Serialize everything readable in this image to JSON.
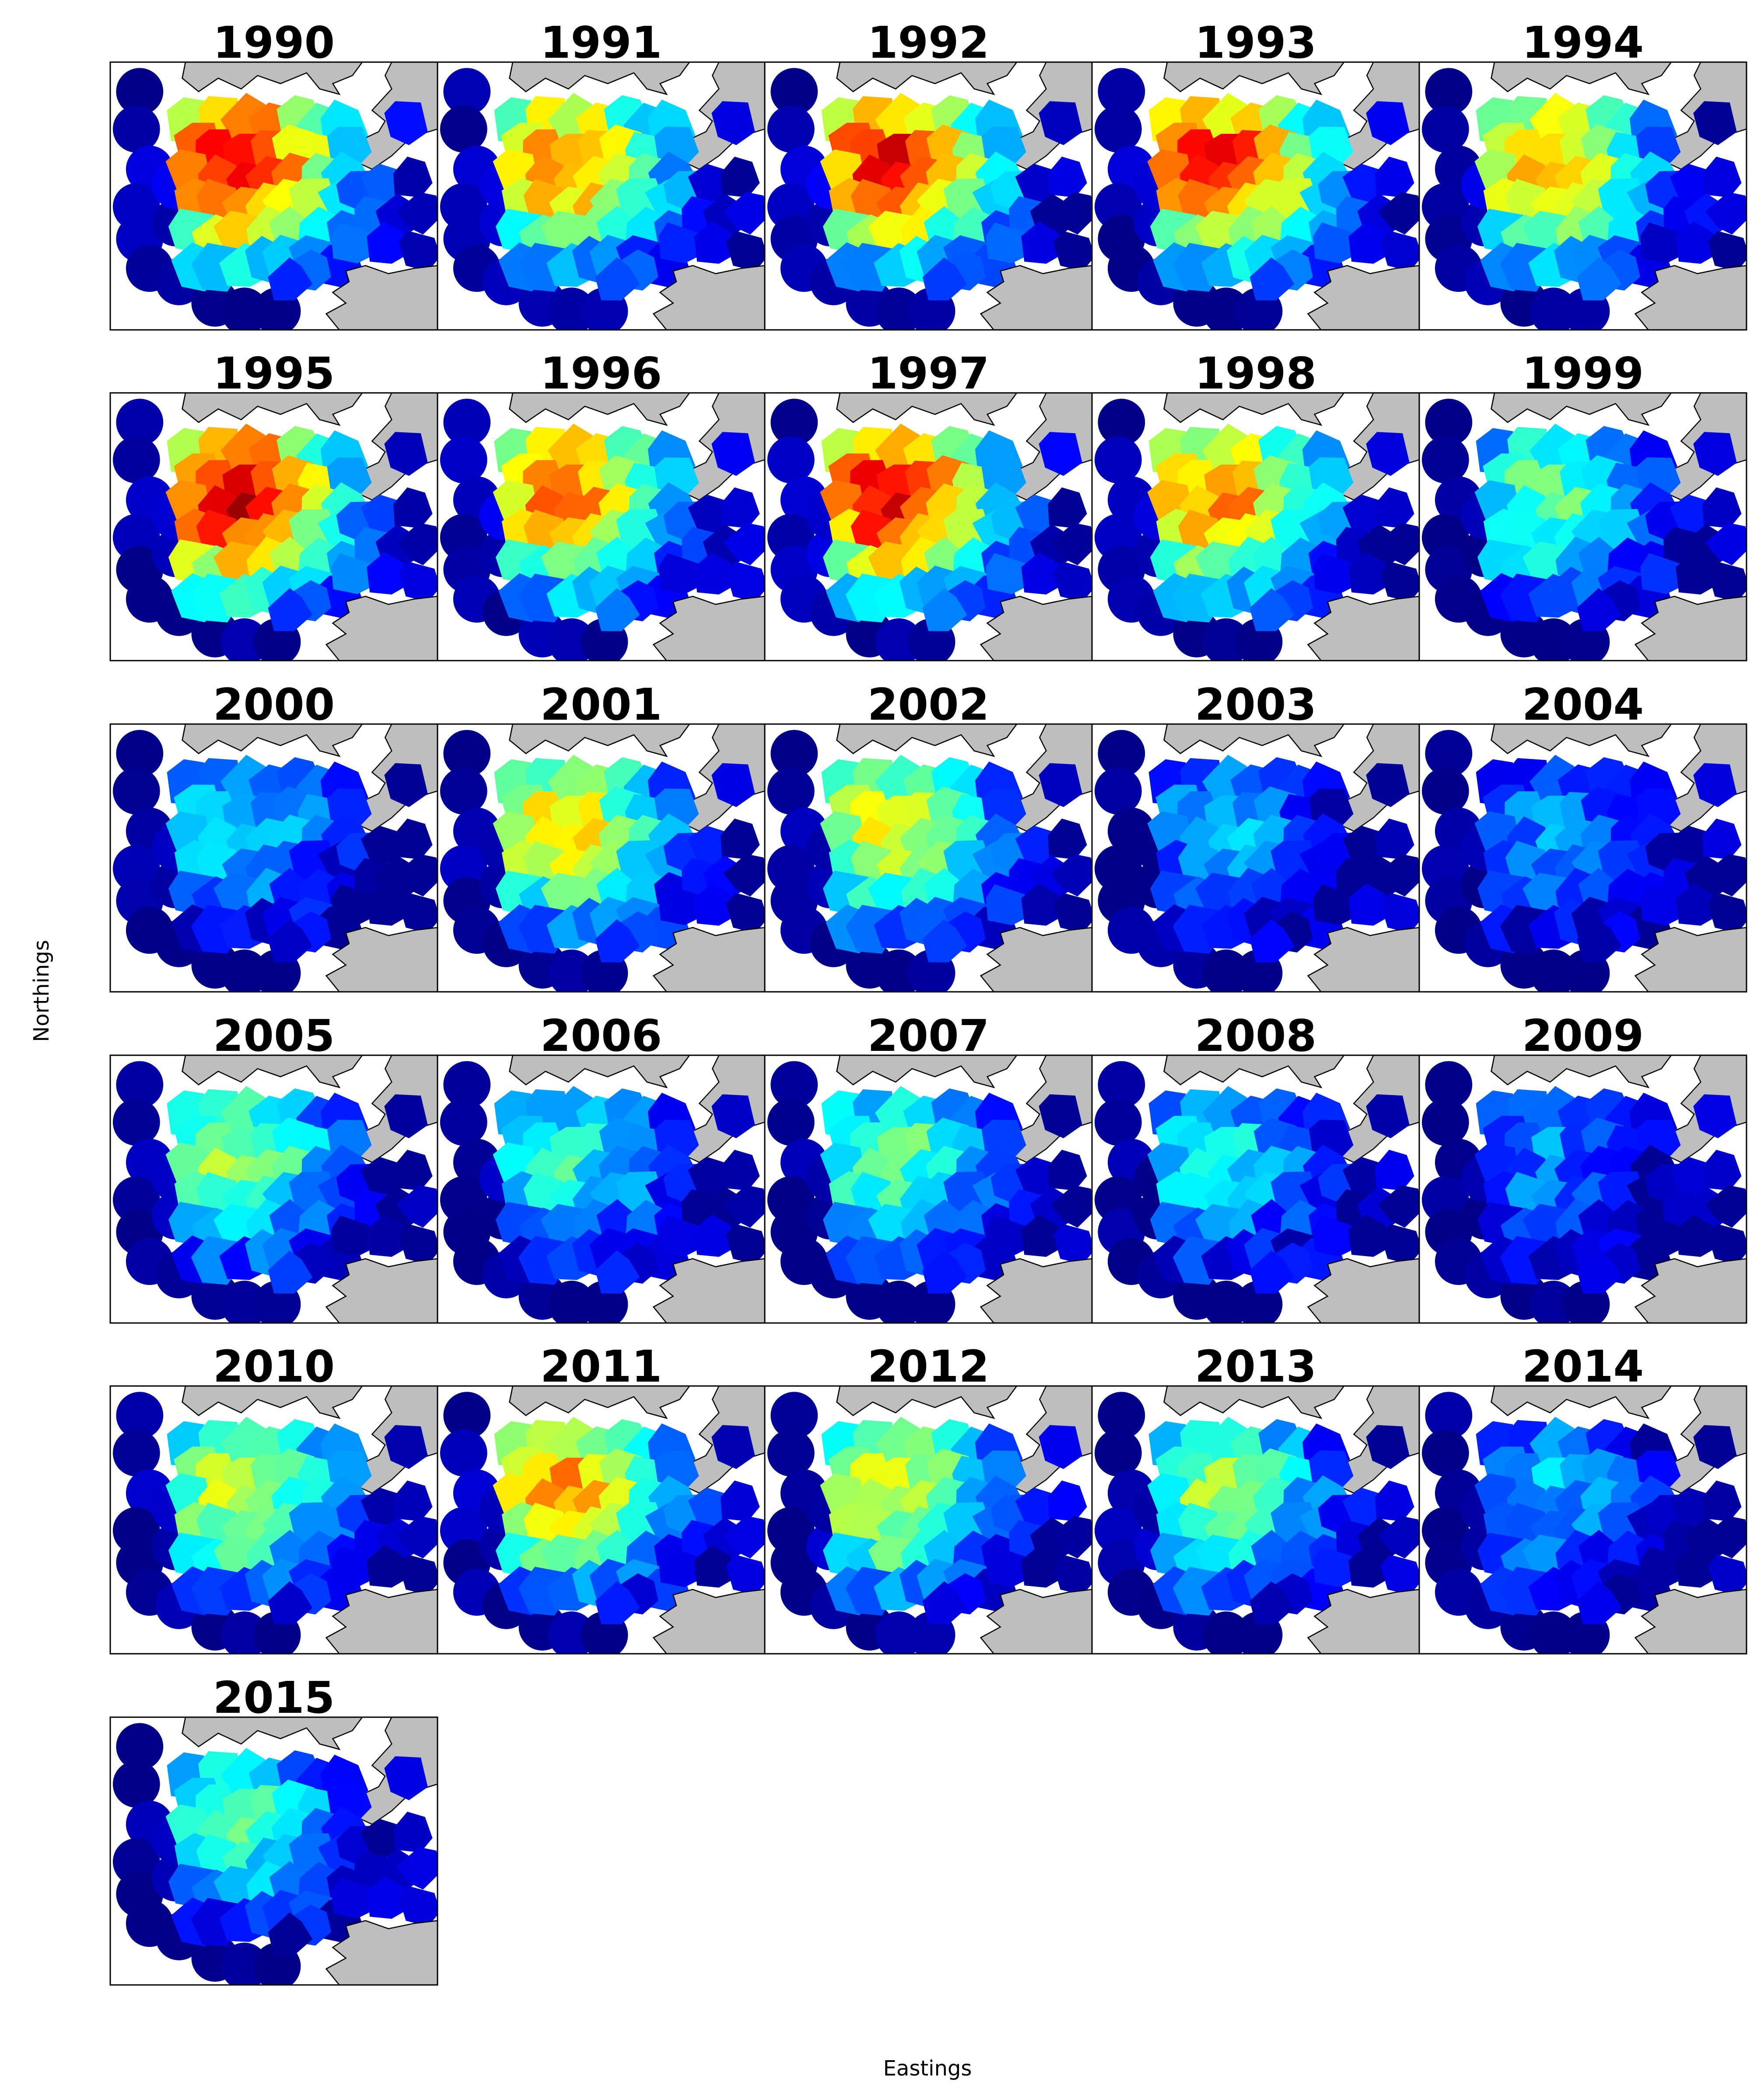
{
  "figure": {
    "xlabel": "Eastings",
    "ylabel": "Northings",
    "colors": {
      "land": "#bebebe",
      "coast": "#000000",
      "sea_background": "#ffffff",
      "frame": "#000000"
    }
  },
  "chart_data": {
    "type": "heatmap",
    "description_of_encoding": "jet colormap; per-panel overall intensity level (0 = dark blue, 1 = red)",
    "colormap": "jet",
    "grid": false,
    "legend": "none",
    "panels": [
      {
        "title": "1990",
        "level": 0.92
      },
      {
        "title": "1991",
        "level": 0.78
      },
      {
        "title": "1992",
        "level": 0.9
      },
      {
        "title": "1993",
        "level": 0.88
      },
      {
        "title": "1994",
        "level": 0.72
      },
      {
        "title": "1995",
        "level": 0.95
      },
      {
        "title": "1996",
        "level": 0.8
      },
      {
        "title": "1997",
        "level": 0.92
      },
      {
        "title": "1998",
        "level": 0.78
      },
      {
        "title": "1999",
        "level": 0.48
      },
      {
        "title": "2000",
        "level": 0.35
      },
      {
        "title": "2001",
        "level": 0.66
      },
      {
        "title": "2002",
        "level": 0.62
      },
      {
        "title": "2003",
        "level": 0.3
      },
      {
        "title": "2004",
        "level": 0.26
      },
      {
        "title": "2005",
        "level": 0.52
      },
      {
        "title": "2006",
        "level": 0.42
      },
      {
        "title": "2007",
        "level": 0.48
      },
      {
        "title": "2008",
        "level": 0.38
      },
      {
        "title": "2009",
        "level": 0.25
      },
      {
        "title": "2010",
        "level": 0.58
      },
      {
        "title": "2011",
        "level": 0.72
      },
      {
        "title": "2012",
        "level": 0.62
      },
      {
        "title": "2013",
        "level": 0.55
      },
      {
        "title": "2014",
        "level": 0.3
      },
      {
        "title": "2015",
        "level": 0.45
      }
    ]
  }
}
